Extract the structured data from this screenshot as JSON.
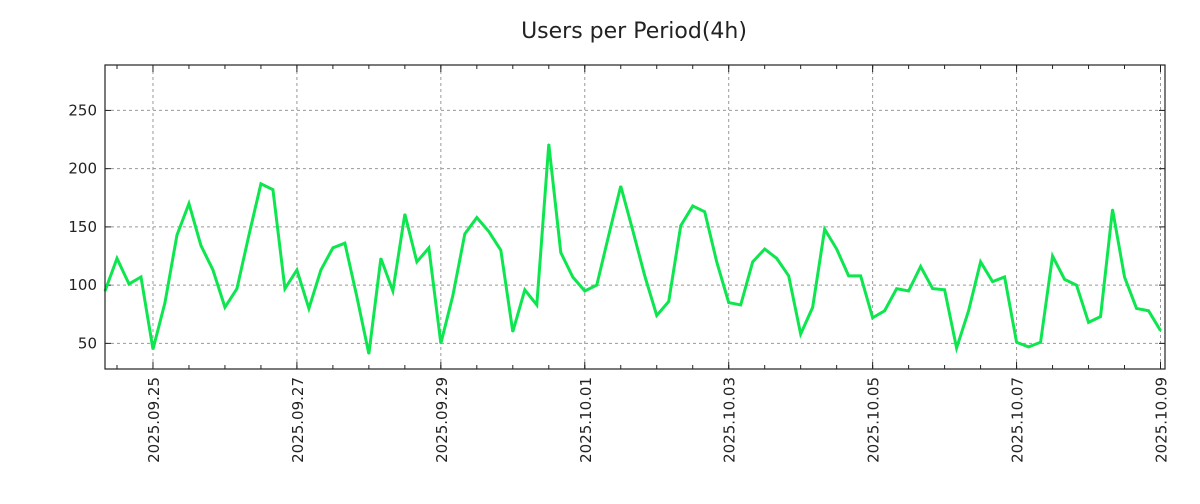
{
  "chart_data": {
    "type": "line",
    "title": "Users per Period(4h)",
    "xlabel": "",
    "ylabel": "",
    "x_start": "2025-09-24 08:00",
    "step_hours": 4,
    "x_range_hours": [
      0,
      353.5
    ],
    "ylim": [
      28,
      289
    ],
    "grid": true,
    "line_color": "#0de64e",
    "y_ticks": [
      50,
      100,
      150,
      200,
      250
    ],
    "x_ticks": [
      {
        "label": "2025.09.25",
        "hours": 16
      },
      {
        "label": "2025.09.27",
        "hours": 64
      },
      {
        "label": "2025.09.29",
        "hours": 112
      },
      {
        "label": "2025.10.01",
        "hours": 160
      },
      {
        "label": "2025.10.03",
        "hours": 208
      },
      {
        "label": "2025.10.05",
        "hours": 256
      },
      {
        "label": "2025.10.07",
        "hours": 304
      },
      {
        "label": "2025.10.09",
        "hours": 352
      }
    ],
    "series": [
      {
        "name": "Users",
        "values": [
          95,
          123,
          101,
          107,
          45,
          85,
          143,
          170,
          134,
          113,
          81,
          97,
          143,
          187,
          182,
          97,
          113,
          80,
          113,
          132,
          136,
          90,
          41,
          123,
          95,
          161,
          120,
          132,
          50,
          91,
          144,
          158,
          146,
          130,
          60,
          96,
          83,
          221,
          128,
          107,
          95,
          100,
          143,
          185,
          147,
          108,
          74,
          86,
          151,
          168,
          163,
          120,
          85,
          83,
          120,
          131,
          123,
          108,
          58,
          81,
          148,
          131,
          108,
          108,
          72,
          78,
          97,
          95,
          116,
          97,
          96,
          46,
          78,
          120,
          103,
          107,
          51,
          47,
          51,
          125,
          105,
          100,
          68,
          73,
          165,
          107,
          80,
          78,
          61
        ]
      }
    ]
  }
}
